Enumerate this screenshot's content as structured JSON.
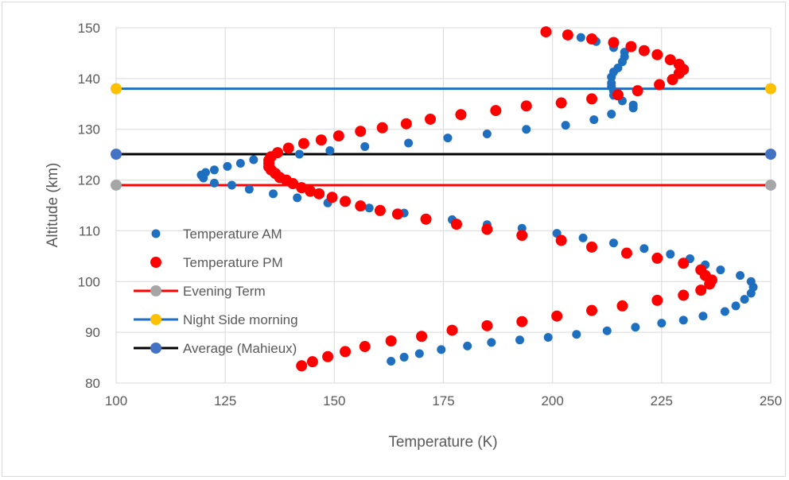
{
  "chart_data": {
    "type": "scatter",
    "title": "",
    "xlabel": "Temperature (K)",
    "ylabel": "Altitude (km)",
    "xlim": [
      100,
      250
    ],
    "ylim": [
      80,
      150
    ],
    "xticks": [
      "100",
      "125",
      "150",
      "175",
      "200",
      "225",
      "250"
    ],
    "yticks": [
      "80",
      "90",
      "100",
      "110",
      "120",
      "130",
      "140",
      "150"
    ],
    "grid": "vertical and horizontal major gridlines",
    "legend_position": "left, inside plot",
    "series": [
      {
        "name": "Temperature AM",
        "kind": "markers",
        "color": "#1f6fc0",
        "points": [
          [
            163,
            84.3
          ],
          [
            166,
            85.1
          ],
          [
            169.5,
            85.8
          ],
          [
            174.5,
            86.6
          ],
          [
            180.5,
            87.3
          ],
          [
            186,
            88
          ],
          [
            192.5,
            88.5
          ],
          [
            199,
            89
          ],
          [
            205.5,
            89.6
          ],
          [
            212.5,
            90.3
          ],
          [
            219,
            91
          ],
          [
            225,
            91.8
          ],
          [
            230,
            92.4
          ],
          [
            234.5,
            93.2
          ],
          [
            239.5,
            94.1
          ],
          [
            242,
            95.2
          ],
          [
            244,
            96.5
          ],
          [
            245.5,
            97.7
          ],
          [
            246,
            98.9
          ],
          [
            245.5,
            100
          ],
          [
            243,
            101.2
          ],
          [
            238.5,
            102.3
          ],
          [
            235,
            103.3
          ],
          [
            231.5,
            104.5
          ],
          [
            227,
            105.4
          ],
          [
            221,
            106.5
          ],
          [
            214,
            107.6
          ],
          [
            207,
            108.6
          ],
          [
            201,
            109.5
          ],
          [
            193,
            110.5
          ],
          [
            185,
            111.2
          ],
          [
            177,
            112.2
          ],
          [
            166,
            113.5
          ],
          [
            158,
            114.5
          ],
          [
            148.5,
            115.5
          ],
          [
            141.5,
            116.5
          ],
          [
            136,
            117.3
          ],
          [
            130.5,
            118.2
          ],
          [
            126.5,
            119
          ],
          [
            122.5,
            119.4
          ],
          [
            120,
            120.4
          ],
          [
            119.5,
            121
          ],
          [
            120.5,
            121.5
          ],
          [
            122.5,
            122
          ],
          [
            125.5,
            122.7
          ],
          [
            128.5,
            123.3
          ],
          [
            131.5,
            124
          ],
          [
            142,
            125.1
          ],
          [
            149,
            125.8
          ],
          [
            157,
            126.6
          ],
          [
            167,
            127.3
          ],
          [
            176,
            128.3
          ],
          [
            185,
            129.1
          ],
          [
            194,
            130
          ],
          [
            203,
            130.8
          ],
          [
            209.5,
            131.9
          ],
          [
            213.5,
            133
          ],
          [
            218.5,
            134.2
          ],
          [
            218.5,
            134.8
          ],
          [
            216,
            135.6
          ],
          [
            214,
            136.7
          ],
          [
            214,
            137.5
          ],
          [
            213.5,
            138.4
          ],
          [
            213.5,
            139.1
          ],
          [
            213.5,
            140.3
          ],
          [
            214,
            141.3
          ],
          [
            215,
            142.1
          ],
          [
            216,
            143.3
          ],
          [
            216.5,
            144.3
          ],
          [
            216.5,
            145.2
          ],
          [
            214,
            146.1
          ],
          [
            210,
            147.3
          ],
          [
            206.5,
            148.1
          ]
        ]
      },
      {
        "name": "Temperature PM",
        "kind": "markers",
        "color": "#ff0000",
        "points": [
          [
            142.5,
            83.4
          ],
          [
            145,
            84.2
          ],
          [
            148.5,
            85.2
          ],
          [
            152.5,
            86.2
          ],
          [
            157,
            87.2
          ],
          [
            163,
            88.3
          ],
          [
            170,
            89.2
          ],
          [
            177,
            90.4
          ],
          [
            185,
            91.3
          ],
          [
            193,
            92.1
          ],
          [
            201,
            93.2
          ],
          [
            209,
            94.3
          ],
          [
            216,
            95.2
          ],
          [
            224,
            96.3
          ],
          [
            230,
            97.3
          ],
          [
            234,
            98.3
          ],
          [
            236,
            99.5
          ],
          [
            236.5,
            100.3
          ],
          [
            235,
            101.2
          ],
          [
            234,
            102.3
          ],
          [
            230,
            103.6
          ],
          [
            224,
            104.6
          ],
          [
            217,
            105.6
          ],
          [
            209,
            106.8
          ],
          [
            202,
            108.1
          ],
          [
            193,
            109.1
          ],
          [
            185,
            110.3
          ],
          [
            178,
            111.3
          ],
          [
            171,
            112.3
          ],
          [
            164.5,
            113.3
          ],
          [
            160.5,
            114
          ],
          [
            156,
            114.9
          ],
          [
            152.5,
            115.8
          ],
          [
            149.5,
            116.6
          ],
          [
            146.5,
            117.3
          ],
          [
            144.5,
            117.8
          ],
          [
            142.5,
            118.5
          ],
          [
            140.5,
            119.3
          ],
          [
            139,
            120
          ],
          [
            137.5,
            120.5
          ],
          [
            136.5,
            121.3
          ],
          [
            135.5,
            122
          ],
          [
            135,
            122.6
          ],
          [
            135,
            123.3
          ],
          [
            135,
            123.9
          ],
          [
            135.5,
            124.6
          ],
          [
            137,
            125.4
          ],
          [
            139.5,
            126.3
          ],
          [
            143,
            127.2
          ],
          [
            147,
            127.9
          ],
          [
            151,
            128.7
          ],
          [
            156,
            129.6
          ],
          [
            161,
            130.3
          ],
          [
            166.5,
            131.1
          ],
          [
            172,
            132
          ],
          [
            179,
            132.9
          ],
          [
            187,
            133.7
          ],
          [
            194,
            134.6
          ],
          [
            202,
            135.2
          ],
          [
            209,
            136
          ],
          [
            215,
            136.8
          ],
          [
            219.5,
            137.6
          ],
          [
            224.5,
            138.8
          ],
          [
            227.5,
            139.8
          ],
          [
            229,
            141
          ],
          [
            230,
            141.8
          ],
          [
            229,
            142.8
          ],
          [
            227,
            143.7
          ],
          [
            224,
            144.7
          ],
          [
            221,
            145.5
          ],
          [
            218,
            146.3
          ],
          [
            214,
            147.1
          ],
          [
            209,
            147.8
          ],
          [
            203.5,
            148.6
          ],
          [
            198.5,
            149.2
          ]
        ]
      },
      {
        "name": "Evening Term",
        "kind": "line",
        "color": "#ff0000",
        "marker_color": "#a6a6a6",
        "points": [
          [
            100,
            119
          ],
          [
            250,
            119
          ]
        ]
      },
      {
        "name": "Night Side morning",
        "kind": "line",
        "color": "#1f6fc0",
        "marker_color": "#ffc000",
        "points": [
          [
            100,
            138
          ],
          [
            250,
            138
          ]
        ]
      },
      {
        "name": "Average (Mahieux)",
        "kind": "line",
        "color": "#000000",
        "marker_color": "#4472c4",
        "points": [
          [
            100,
            125.1
          ],
          [
            250,
            125.1
          ]
        ]
      }
    ]
  }
}
